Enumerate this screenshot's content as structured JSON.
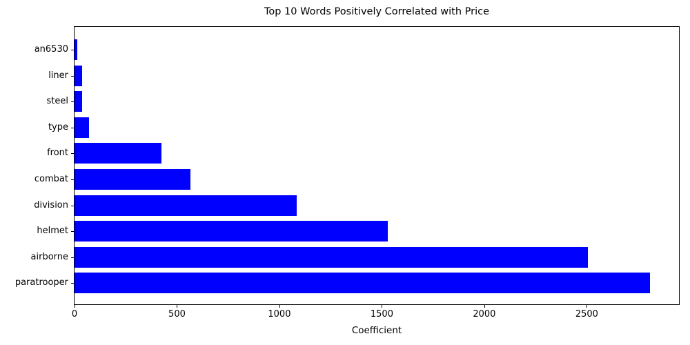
{
  "chart_data": {
    "type": "bar",
    "orientation": "horizontal",
    "title": "Top 10 Words Positively Correlated with Price",
    "xlabel": "Coefficient",
    "ylabel": "",
    "categories_top_to_bottom": [
      "an6530",
      "liner",
      "steel",
      "type",
      "front",
      "combat",
      "division",
      "helmet",
      "airborne",
      "paratrooper"
    ],
    "values_top_to_bottom": [
      15,
      38,
      37,
      72,
      425,
      565,
      1085,
      1530,
      2505,
      2810
    ],
    "xticks": [
      0,
      500,
      1000,
      1500,
      2000,
      2500
    ],
    "xlim": [
      0,
      2950
    ],
    "bar_color": "#0000ff",
    "background_color": "#ffffff",
    "text_color": "#000000",
    "grid": false,
    "legend": "none"
  }
}
